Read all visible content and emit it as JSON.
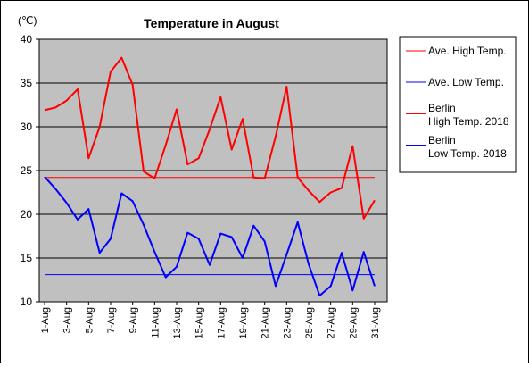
{
  "chart_data": {
    "type": "line",
    "title": "Temperature in August",
    "ylabel": "(℃)",
    "xlabel": "",
    "ylim": [
      10,
      40
    ],
    "yticks": [
      10,
      15,
      20,
      25,
      30,
      35,
      40
    ],
    "categories": [
      "1-Aug",
      "2-Aug",
      "3-Aug",
      "4-Aug",
      "5-Aug",
      "6-Aug",
      "7-Aug",
      "8-Aug",
      "9-Aug",
      "10-Aug",
      "11-Aug",
      "12-Aug",
      "13-Aug",
      "14-Aug",
      "15-Aug",
      "16-Aug",
      "17-Aug",
      "18-Aug",
      "19-Aug",
      "20-Aug",
      "21-Aug",
      "22-Aug",
      "23-Aug",
      "24-Aug",
      "25-Aug",
      "26-Aug",
      "27-Aug",
      "28-Aug",
      "29-Aug",
      "30-Aug",
      "31-Aug"
    ],
    "tick_labels": [
      "1-Aug",
      "3-Aug",
      "5-Aug",
      "7-Aug",
      "9-Aug",
      "11-Aug",
      "13-Aug",
      "15-Aug",
      "17-Aug",
      "19-Aug",
      "21-Aug",
      "23-Aug",
      "25-Aug",
      "27-Aug",
      "29-Aug",
      "31-Aug"
    ],
    "grid": true,
    "legend_position": "right",
    "plot_background": "#c0c0c0",
    "series": [
      {
        "name": "Ave. High Temp.",
        "color": "#ff0000",
        "width": 1,
        "values": [
          24.2,
          24.2,
          24.2,
          24.2,
          24.2,
          24.2,
          24.2,
          24.2,
          24.2,
          24.2,
          24.2,
          24.2,
          24.2,
          24.2,
          24.2,
          24.2,
          24.2,
          24.2,
          24.2,
          24.2,
          24.2,
          24.2,
          24.2,
          24.2,
          24.2,
          24.2,
          24.2,
          24.2,
          24.2,
          24.2,
          24.2
        ]
      },
      {
        "name": "Ave. Low Temp.",
        "color": "#0000ff",
        "width": 1,
        "values": [
          13.1,
          13.1,
          13.1,
          13.1,
          13.1,
          13.1,
          13.1,
          13.1,
          13.1,
          13.1,
          13.1,
          13.1,
          13.1,
          13.1,
          13.1,
          13.1,
          13.1,
          13.1,
          13.1,
          13.1,
          13.1,
          13.1,
          13.1,
          13.1,
          13.1,
          13.1,
          13.1,
          13.1,
          13.1,
          13.1,
          13.1
        ]
      },
      {
        "name": "Berlin High Temp. 2018",
        "legend_lines": [
          "Berlin",
          "High Temp. 2018"
        ],
        "color": "#ff0000",
        "width": 2,
        "values": [
          31.9,
          32.2,
          33.0,
          34.3,
          26.4,
          30.0,
          36.3,
          37.9,
          34.8,
          24.9,
          24.1,
          27.9,
          32.0,
          25.7,
          26.4,
          29.7,
          33.4,
          27.4,
          30.9,
          24.2,
          24.1,
          28.9,
          34.6,
          24.2,
          22.7,
          21.4,
          22.5,
          23.0,
          27.8,
          19.5,
          21.6
        ]
      },
      {
        "name": "Berlin Low Temp. 2018",
        "legend_lines": [
          "Berlin",
          "Low Temp. 2018"
        ],
        "color": "#0000ff",
        "width": 2,
        "values": [
          24.3,
          22.9,
          21.3,
          19.4,
          20.6,
          15.6,
          17.2,
          22.4,
          21.5,
          18.8,
          15.7,
          12.8,
          14.0,
          17.9,
          17.2,
          14.2,
          17.8,
          17.4,
          15.0,
          18.7,
          16.9,
          11.8,
          15.4,
          19.1,
          14.3,
          10.7,
          11.8,
          15.6,
          11.3,
          15.7,
          11.8
        ]
      }
    ]
  }
}
